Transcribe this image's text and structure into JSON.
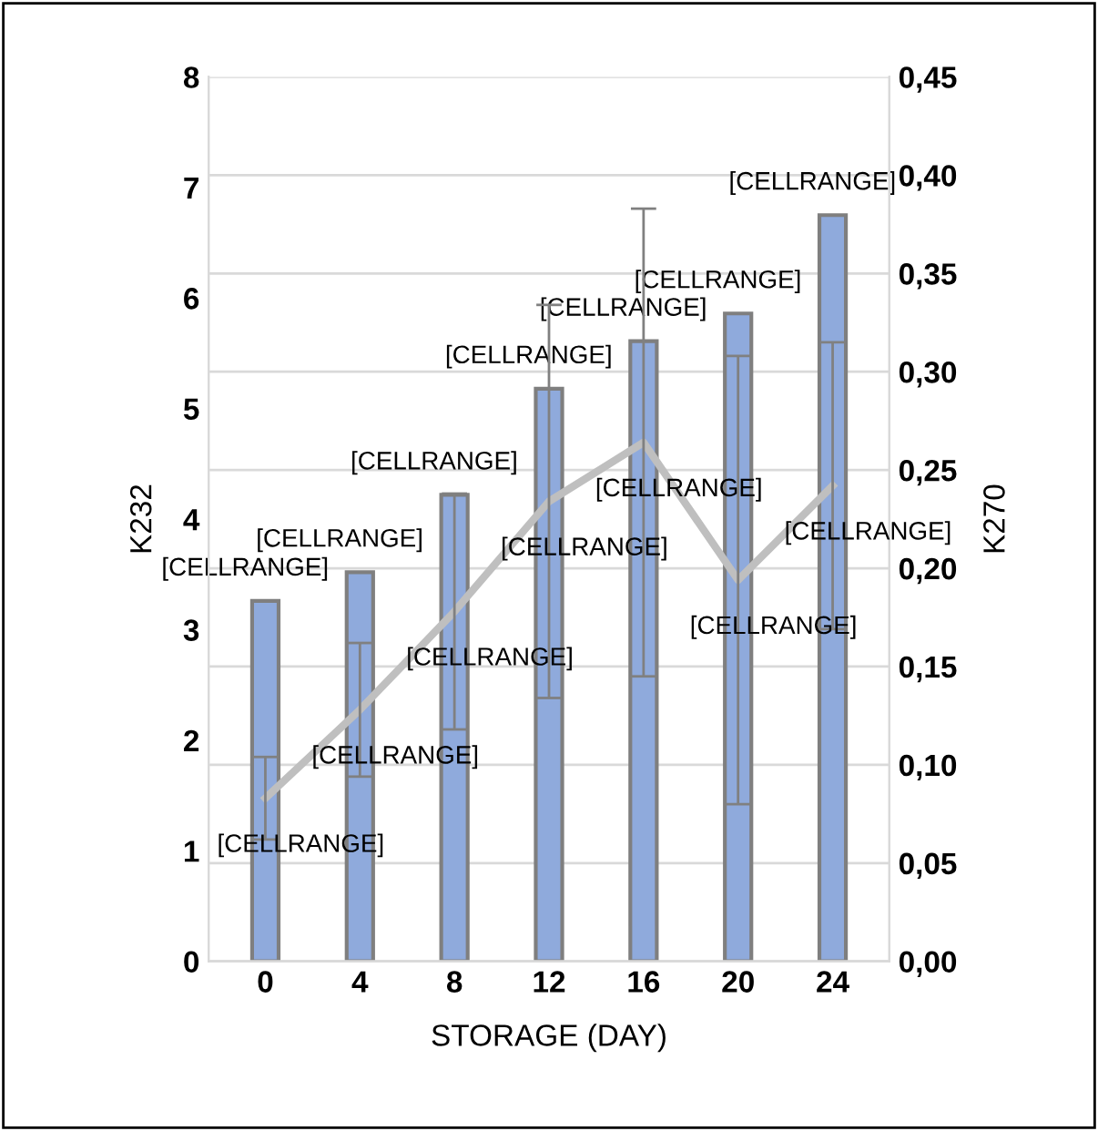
{
  "chart_data": {
    "type": "bar",
    "xlabel": "STORAGE (DAY)",
    "ylabel": "K232",
    "y2label": "K270",
    "categories": [
      "0",
      "4",
      "8",
      "12",
      "16",
      "20",
      "24"
    ],
    "series": [
      {
        "color": "#8faadc",
        "values": [
          3.26,
          3.52,
          4.22,
          5.18,
          5.61,
          5.86,
          6.75
        ],
        "value_labels": [
          "[CELLRANGE]",
          "[CELLRANGE]",
          "[CELLRANGE]",
          "[CELLRANGE]",
          "[CELLRANGE]",
          "[CELLRANGE]",
          "[CELLRANGE]"
        ]
      },
      {
        "type": "line",
        "axis": "y2",
        "color": "#bfbfbf",
        "values": [
          0.083,
          0.128,
          0.178,
          0.234,
          0.264,
          0.194,
          0.242
        ],
        "errors": [
          0.021,
          0.034,
          0.06,
          0.1,
          0.119,
          0.114,
          0.073
        ],
        "value_labels": [
          "[CELLRANGE]",
          "[CELLRANGE]",
          "[CELLRANGE]",
          "[CELLRANGE]",
          "[CELLRANGE]",
          "[CELLRANGE]",
          "[CELLRANGE]"
        ]
      }
    ],
    "ylim": [
      0,
      8
    ],
    "yticks": [
      0,
      1,
      2,
      3,
      4,
      5,
      6,
      7,
      8
    ],
    "y2lim": [
      0,
      0.45
    ],
    "y2ticks": [
      {
        "value": 0,
        "label": "0,00"
      },
      {
        "value": 0.05,
        "label": "0,05"
      },
      {
        "value": 0.1,
        "label": "0,10"
      },
      {
        "value": 0.15,
        "label": "0,15"
      },
      {
        "value": 0.2,
        "label": "0,20"
      },
      {
        "value": 0.25,
        "label": "0,25"
      },
      {
        "value": 0.3,
        "label": "0,30"
      },
      {
        "value": 0.35,
        "label": "0,35"
      },
      {
        "value": 0.4,
        "label": "0,40"
      },
      {
        "value": 0.45,
        "label": "0,45"
      }
    ],
    "grid": "y2",
    "legend": false,
    "marker": "none",
    "line_style": "solid"
  }
}
